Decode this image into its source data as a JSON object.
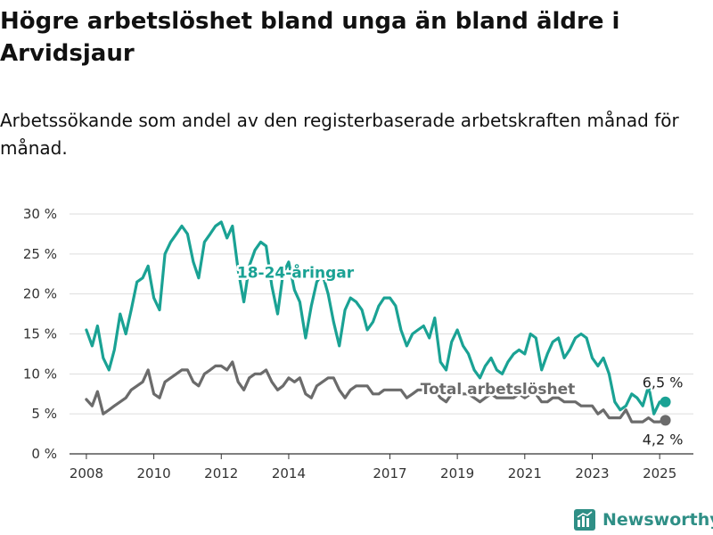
{
  "title": "Högre arbetslöshet bland unga än bland äldre i Arvidsjaur",
  "subtitle": "Arbetssökande som andel av den registerbaserade arbetskraften månad för månad.",
  "brand": {
    "name": "Newsworthy",
    "icon": "bar-chart-logo-icon"
  },
  "colors": {
    "youth": "#1aa294",
    "total": "#6b6b6b",
    "grid": "#dddddd",
    "axis": "#333333",
    "brand": "#2f8f86"
  },
  "chart_data": {
    "type": "line",
    "ylabel": "",
    "xlabel": "",
    "ylim": [
      0,
      30
    ],
    "xlim": [
      2007.5,
      2026.0
    ],
    "grid": true,
    "y_ticks": [
      0,
      5,
      10,
      15,
      20,
      25,
      30
    ],
    "y_tick_labels": [
      "0 %",
      "5 %",
      "10 %",
      "15 %",
      "20 %",
      "25 %",
      "30 %"
    ],
    "x_ticks": [
      2008,
      2010,
      2012,
      2014,
      2017,
      2019,
      2021,
      2023,
      2025
    ],
    "x_tick_labels": [
      "2008",
      "2010",
      "2012",
      "2014",
      "2017",
      "2019",
      "2021",
      "2023",
      "2025"
    ],
    "series": [
      {
        "name": "18-24-åringar",
        "color": "#1aa294",
        "points": [
          [
            2008.0,
            15.5
          ],
          [
            2008.17,
            13.5
          ],
          [
            2008.33,
            16.0
          ],
          [
            2008.5,
            12.0
          ],
          [
            2008.67,
            10.5
          ],
          [
            2008.83,
            13.0
          ],
          [
            2009.0,
            17.5
          ],
          [
            2009.17,
            15.0
          ],
          [
            2009.33,
            18.0
          ],
          [
            2009.5,
            21.5
          ],
          [
            2009.67,
            22.0
          ],
          [
            2009.83,
            23.5
          ],
          [
            2010.0,
            19.5
          ],
          [
            2010.17,
            18.0
          ],
          [
            2010.33,
            25.0
          ],
          [
            2010.5,
            26.5
          ],
          [
            2010.67,
            27.5
          ],
          [
            2010.83,
            28.5
          ],
          [
            2011.0,
            27.5
          ],
          [
            2011.17,
            24.0
          ],
          [
            2011.33,
            22.0
          ],
          [
            2011.5,
            26.5
          ],
          [
            2011.67,
            27.5
          ],
          [
            2011.83,
            28.5
          ],
          [
            2012.0,
            29.0
          ],
          [
            2012.17,
            27.0
          ],
          [
            2012.33,
            28.5
          ],
          [
            2012.5,
            23.0
          ],
          [
            2012.67,
            19.0
          ],
          [
            2012.83,
            23.5
          ],
          [
            2013.0,
            25.5
          ],
          [
            2013.17,
            26.5
          ],
          [
            2013.33,
            26.0
          ],
          [
            2013.5,
            21.0
          ],
          [
            2013.67,
            17.5
          ],
          [
            2013.83,
            22.5
          ],
          [
            2014.0,
            24.0
          ],
          [
            2014.17,
            20.5
          ],
          [
            2014.33,
            19.0
          ],
          [
            2014.5,
            14.5
          ],
          [
            2014.67,
            18.5
          ],
          [
            2014.83,
            21.5
          ],
          [
            2015.0,
            22.5
          ],
          [
            2015.17,
            20.0
          ],
          [
            2015.33,
            16.5
          ],
          [
            2015.5,
            13.5
          ],
          [
            2015.67,
            18.0
          ],
          [
            2015.83,
            19.5
          ],
          [
            2016.0,
            19.0
          ],
          [
            2016.17,
            18.0
          ],
          [
            2016.33,
            15.5
          ],
          [
            2016.5,
            16.5
          ],
          [
            2016.67,
            18.5
          ],
          [
            2016.83,
            19.5
          ],
          [
            2017.0,
            19.5
          ],
          [
            2017.17,
            18.5
          ],
          [
            2017.33,
            15.5
          ],
          [
            2017.5,
            13.5
          ],
          [
            2017.67,
            15.0
          ],
          [
            2017.83,
            15.5
          ],
          [
            2018.0,
            16.0
          ],
          [
            2018.17,
            14.5
          ],
          [
            2018.33,
            17.0
          ],
          [
            2018.5,
            11.5
          ],
          [
            2018.67,
            10.5
          ],
          [
            2018.83,
            14.0
          ],
          [
            2019.0,
            15.5
          ],
          [
            2019.17,
            13.5
          ],
          [
            2019.33,
            12.5
          ],
          [
            2019.5,
            10.5
          ],
          [
            2019.67,
            9.5
          ],
          [
            2019.83,
            11.0
          ],
          [
            2020.0,
            12.0
          ],
          [
            2020.17,
            10.5
          ],
          [
            2020.33,
            10.0
          ],
          [
            2020.5,
            11.5
          ],
          [
            2020.67,
            12.5
          ],
          [
            2020.83,
            13.0
          ],
          [
            2021.0,
            12.5
          ],
          [
            2021.17,
            15.0
          ],
          [
            2021.33,
            14.5
          ],
          [
            2021.5,
            10.5
          ],
          [
            2021.67,
            12.5
          ],
          [
            2021.83,
            14.0
          ],
          [
            2022.0,
            14.5
          ],
          [
            2022.17,
            12.0
          ],
          [
            2022.33,
            13.0
          ],
          [
            2022.5,
            14.5
          ],
          [
            2022.67,
            15.0
          ],
          [
            2022.83,
            14.5
          ],
          [
            2023.0,
            12.0
          ],
          [
            2023.17,
            11.0
          ],
          [
            2023.33,
            12.0
          ],
          [
            2023.5,
            10.0
          ],
          [
            2023.67,
            6.5
          ],
          [
            2023.83,
            5.5
          ],
          [
            2024.0,
            6.0
          ],
          [
            2024.17,
            7.5
          ],
          [
            2024.33,
            7.0
          ],
          [
            2024.5,
            6.0
          ],
          [
            2024.67,
            8.5
          ],
          [
            2024.83,
            5.0
          ],
          [
            2025.0,
            6.5
          ],
          [
            2025.17,
            6.5
          ]
        ]
      },
      {
        "name": "Total arbetslöshet",
        "color": "#6b6b6b",
        "points": [
          [
            2008.0,
            6.8
          ],
          [
            2008.17,
            6.0
          ],
          [
            2008.33,
            7.8
          ],
          [
            2008.5,
            5.0
          ],
          [
            2008.67,
            5.5
          ],
          [
            2008.83,
            6.0
          ],
          [
            2009.0,
            6.5
          ],
          [
            2009.17,
            7.0
          ],
          [
            2009.33,
            8.0
          ],
          [
            2009.5,
            8.5
          ],
          [
            2009.67,
            9.0
          ],
          [
            2009.83,
            10.5
          ],
          [
            2010.0,
            7.5
          ],
          [
            2010.17,
            7.0
          ],
          [
            2010.33,
            9.0
          ],
          [
            2010.5,
            9.5
          ],
          [
            2010.67,
            10.0
          ],
          [
            2010.83,
            10.5
          ],
          [
            2011.0,
            10.5
          ],
          [
            2011.17,
            9.0
          ],
          [
            2011.33,
            8.5
          ],
          [
            2011.5,
            10.0
          ],
          [
            2011.67,
            10.5
          ],
          [
            2011.83,
            11.0
          ],
          [
            2012.0,
            11.0
          ],
          [
            2012.17,
            10.5
          ],
          [
            2012.33,
            11.5
          ],
          [
            2012.5,
            9.0
          ],
          [
            2012.67,
            8.0
          ],
          [
            2012.83,
            9.5
          ],
          [
            2013.0,
            10.0
          ],
          [
            2013.17,
            10.0
          ],
          [
            2013.33,
            10.5
          ],
          [
            2013.5,
            9.0
          ],
          [
            2013.67,
            8.0
          ],
          [
            2013.83,
            8.5
          ],
          [
            2014.0,
            9.5
          ],
          [
            2014.17,
            9.0
          ],
          [
            2014.33,
            9.5
          ],
          [
            2014.5,
            7.5
          ],
          [
            2014.67,
            7.0
          ],
          [
            2014.83,
            8.5
          ],
          [
            2015.0,
            9.0
          ],
          [
            2015.17,
            9.5
          ],
          [
            2015.33,
            9.5
          ],
          [
            2015.5,
            8.0
          ],
          [
            2015.67,
            7.0
          ],
          [
            2015.83,
            8.0
          ],
          [
            2016.0,
            8.5
          ],
          [
            2016.17,
            8.5
          ],
          [
            2016.33,
            8.5
          ],
          [
            2016.5,
            7.5
          ],
          [
            2016.67,
            7.5
          ],
          [
            2016.83,
            8.0
          ],
          [
            2017.0,
            8.0
          ],
          [
            2017.17,
            8.0
          ],
          [
            2017.33,
            8.0
          ],
          [
            2017.5,
            7.0
          ],
          [
            2017.67,
            7.5
          ],
          [
            2017.83,
            8.0
          ],
          [
            2018.0,
            8.0
          ],
          [
            2018.17,
            8.0
          ],
          [
            2018.33,
            8.0
          ],
          [
            2018.5,
            7.0
          ],
          [
            2018.67,
            6.5
          ],
          [
            2018.83,
            7.5
          ],
          [
            2019.0,
            8.0
          ],
          [
            2019.17,
            7.5
          ],
          [
            2019.33,
            7.5
          ],
          [
            2019.5,
            7.0
          ],
          [
            2019.67,
            6.5
          ],
          [
            2019.83,
            7.0
          ],
          [
            2020.0,
            7.5
          ],
          [
            2020.17,
            7.0
          ],
          [
            2020.33,
            7.0
          ],
          [
            2020.5,
            7.0
          ],
          [
            2020.67,
            7.0
          ],
          [
            2020.83,
            7.5
          ],
          [
            2021.0,
            7.0
          ],
          [
            2021.17,
            7.5
          ],
          [
            2021.33,
            7.5
          ],
          [
            2021.5,
            6.5
          ],
          [
            2021.67,
            6.5
          ],
          [
            2021.83,
            7.0
          ],
          [
            2022.0,
            7.0
          ],
          [
            2022.17,
            6.5
          ],
          [
            2022.33,
            6.5
          ],
          [
            2022.5,
            6.5
          ],
          [
            2022.67,
            6.0
          ],
          [
            2022.83,
            6.0
          ],
          [
            2023.0,
            6.0
          ],
          [
            2023.17,
            5.0
          ],
          [
            2023.33,
            5.5
          ],
          [
            2023.5,
            4.5
          ],
          [
            2023.67,
            4.5
          ],
          [
            2023.83,
            4.5
          ],
          [
            2024.0,
            5.5
          ],
          [
            2024.17,
            4.0
          ],
          [
            2024.33,
            4.0
          ],
          [
            2024.5,
            4.0
          ],
          [
            2024.67,
            4.5
          ],
          [
            2024.83,
            4.0
          ],
          [
            2025.0,
            4.0
          ],
          [
            2025.17,
            4.2
          ]
        ]
      }
    ],
    "series_labels": [
      {
        "text": "18-24-åringar",
        "series": 0,
        "anchor": [
          2014.2,
          22.0
        ]
      },
      {
        "text": "Total arbetslöshet",
        "series": 1,
        "anchor": [
          2020.2,
          7.5
        ]
      }
    ],
    "end_labels": [
      {
        "text": "6,5 %",
        "series": 0,
        "value": 6.5
      },
      {
        "text": "4,2 %",
        "series": 1,
        "value": 4.2
      }
    ]
  }
}
